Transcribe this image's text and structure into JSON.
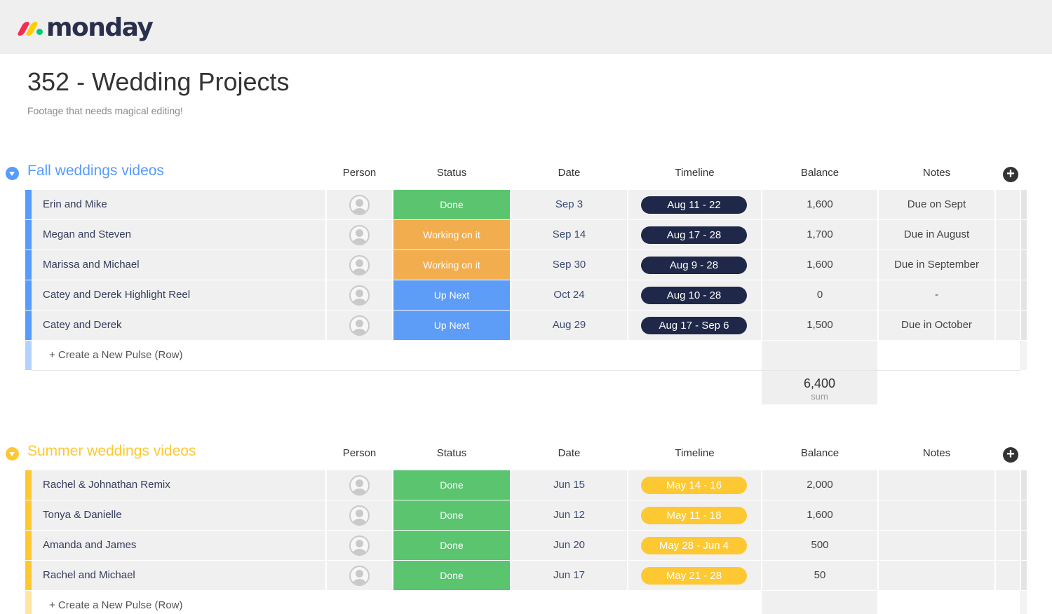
{
  "app": {
    "brand": "monday",
    "logo_colors": [
      "#f62b54",
      "#ffcc00",
      "#00ca72"
    ]
  },
  "board": {
    "title": "352 - Wedding Projects",
    "description": "Footage that needs magical editing!"
  },
  "columns": {
    "person": "Person",
    "status": "Status",
    "date": "Date",
    "timeline": "Timeline",
    "balance": "Balance",
    "notes": "Notes"
  },
  "create_label": "+ Create a New Pulse (Row)",
  "groups": [
    {
      "name": "Fall weddings videos",
      "color": "#579bfc",
      "rows": [
        {
          "name": "Erin and Mike",
          "status": "Done",
          "status_color": "#5ac46f",
          "date": "Sep 3",
          "timeline": "Aug 11 - 22",
          "balance": "1,600",
          "notes": "Due on Sept"
        },
        {
          "name": "Megan and Steven",
          "status": "Working on it",
          "status_color": "#f2ad4f",
          "date": "Sep 14",
          "timeline": "Aug 17 - 28",
          "balance": "1,700",
          "notes": "Due in August"
        },
        {
          "name": "Marissa and Michael",
          "status": "Working on it",
          "status_color": "#f2ad4f",
          "date": "Sep 30",
          "timeline": "Aug 9 - 28",
          "balance": "1,600",
          "notes": "Due in September"
        },
        {
          "name": "Catey and Derek Highlight Reel",
          "status": "Up Next",
          "status_color": "#5d9cf7",
          "date": "Oct 24",
          "timeline": "Aug 10 - 28",
          "balance": "0",
          "notes": "-"
        },
        {
          "name": "Catey and Derek",
          "status": "Up Next",
          "status_color": "#5d9cf7",
          "date": "Aug 29",
          "timeline": "Aug 17 - Sep 6",
          "balance": "1,500",
          "notes": "Due in October"
        }
      ],
      "summary": {
        "value": "6,400",
        "label": "sum"
      }
    },
    {
      "name": "Summer weddings videos",
      "color": "#fdc831",
      "rows": [
        {
          "name": "Rachel & Johnathan Remix",
          "status": "Done",
          "status_color": "#5ac46f",
          "date": "Jun 15",
          "timeline": "May 14 - 16",
          "balance": "2,000",
          "notes": ""
        },
        {
          "name": "Tonya & Danielle",
          "status": "Done",
          "status_color": "#5ac46f",
          "date": "Jun 12",
          "timeline": "May 11 - 18",
          "balance": "1,600",
          "notes": ""
        },
        {
          "name": "Amanda and James",
          "status": "Done",
          "status_color": "#5ac46f",
          "date": "Jun 20",
          "timeline": "May 28 - Jun 4",
          "balance": "500",
          "notes": ""
        },
        {
          "name": "Rachel and Michael",
          "status": "Done",
          "status_color": "#5ac46f",
          "date": "Jun 17",
          "timeline": "May 21 - 28",
          "balance": "50",
          "notes": ""
        }
      ]
    }
  ]
}
